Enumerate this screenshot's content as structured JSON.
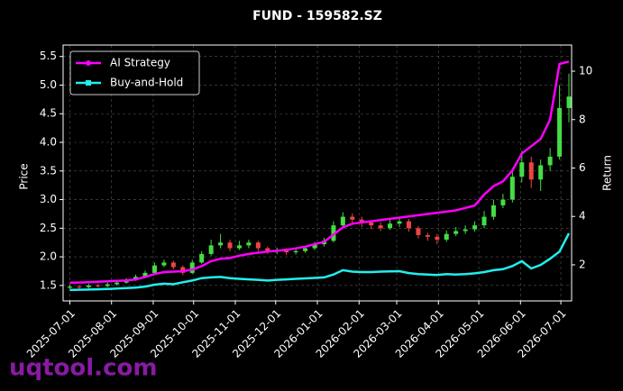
{
  "chart_data": {
    "type": "candlestick",
    "title": "FUND - 159582.SZ",
    "ylabel": "Price",
    "y2label": "Return",
    "watermark": "uqtool.com",
    "x": [
      "2025-07-01",
      "2025-07-08",
      "2025-07-15",
      "2025-07-22",
      "2025-07-29",
      "2025-08-05",
      "2025-08-12",
      "2025-08-19",
      "2025-08-26",
      "2025-09-02",
      "2025-09-09",
      "2025-09-16",
      "2025-09-23",
      "2025-09-30",
      "2025-10-07",
      "2025-10-14",
      "2025-10-21",
      "2025-10-28",
      "2025-11-04",
      "2025-11-11",
      "2025-11-18",
      "2025-11-25",
      "2025-12-02",
      "2025-12-09",
      "2025-12-16",
      "2025-12-23",
      "2025-12-30",
      "2026-01-06",
      "2026-01-13",
      "2026-01-20",
      "2026-01-27",
      "2026-02-03",
      "2026-02-10",
      "2026-02-17",
      "2026-02-24",
      "2026-03-03",
      "2026-03-10",
      "2026-03-17",
      "2026-03-24",
      "2026-03-31",
      "2026-04-07",
      "2026-04-14",
      "2026-04-21",
      "2026-04-28",
      "2026-05-05",
      "2026-05-12",
      "2026-05-19",
      "2026-05-26",
      "2026-06-02",
      "2026-06-09",
      "2026-06-16",
      "2026-06-23",
      "2026-06-30",
      "2026-07-07"
    ],
    "open": [
      1.46,
      1.48,
      1.47,
      1.5,
      1.49,
      1.52,
      1.55,
      1.6,
      1.65,
      1.72,
      1.85,
      1.9,
      1.82,
      1.72,
      1.9,
      2.05,
      2.2,
      2.25,
      2.15,
      2.2,
      2.25,
      2.15,
      2.1,
      2.12,
      2.08,
      2.1,
      2.15,
      2.22,
      2.28,
      2.55,
      2.7,
      2.65,
      2.6,
      2.55,
      2.5,
      2.58,
      2.62,
      2.5,
      2.38,
      2.35,
      2.3,
      2.4,
      2.45,
      2.48,
      2.55,
      2.7,
      2.9,
      3.0,
      3.4,
      3.65,
      3.35,
      3.6,
      3.75,
      4.6
    ],
    "high": [
      1.51,
      1.51,
      1.53,
      1.53,
      1.55,
      1.58,
      1.63,
      1.69,
      1.76,
      1.9,
      1.95,
      1.93,
      1.85,
      1.95,
      2.1,
      2.3,
      2.4,
      2.3,
      2.28,
      2.3,
      2.28,
      2.18,
      2.16,
      2.15,
      2.14,
      2.19,
      2.26,
      2.33,
      2.62,
      2.78,
      2.76,
      2.7,
      2.64,
      2.6,
      2.65,
      2.7,
      2.66,
      2.54,
      2.42,
      2.4,
      2.46,
      2.52,
      2.55,
      2.62,
      2.8,
      3.0,
      3.1,
      3.55,
      3.85,
      3.75,
      3.7,
      3.9,
      5.0,
      5.2
    ],
    "low": [
      1.44,
      1.44,
      1.45,
      1.46,
      1.47,
      1.5,
      1.53,
      1.58,
      1.63,
      1.7,
      1.82,
      1.78,
      1.68,
      1.7,
      1.88,
      2.02,
      2.15,
      2.1,
      2.12,
      2.15,
      2.1,
      2.05,
      2.05,
      2.03,
      2.04,
      2.07,
      2.12,
      2.18,
      2.25,
      2.5,
      2.58,
      2.52,
      2.48,
      2.45,
      2.47,
      2.52,
      2.44,
      2.32,
      2.28,
      2.22,
      2.26,
      2.36,
      2.4,
      2.44,
      2.5,
      2.65,
      2.85,
      2.95,
      3.3,
      3.2,
      3.15,
      3.5,
      3.7,
      4.35
    ],
    "close": [
      1.48,
      1.47,
      1.5,
      1.49,
      1.52,
      1.55,
      1.6,
      1.65,
      1.72,
      1.85,
      1.9,
      1.82,
      1.72,
      1.9,
      2.05,
      2.2,
      2.25,
      2.15,
      2.2,
      2.25,
      2.15,
      2.1,
      2.12,
      2.08,
      2.1,
      2.15,
      2.22,
      2.28,
      2.55,
      2.7,
      2.65,
      2.6,
      2.55,
      2.5,
      2.58,
      2.62,
      2.5,
      2.38,
      2.35,
      2.3,
      2.4,
      2.45,
      2.48,
      2.55,
      2.7,
      2.9,
      3.0,
      3.4,
      3.65,
      3.35,
      3.6,
      3.75,
      4.6,
      4.8
    ],
    "up_color": "#44dd44",
    "down_color": "#ee4444",
    "series": [
      {
        "name": "AI Strategy",
        "color": "#ff00ff",
        "axis": "y2",
        "marker": "circle",
        "values": [
          1.26,
          1.27,
          1.28,
          1.3,
          1.32,
          1.34,
          1.36,
          1.4,
          1.5,
          1.62,
          1.7,
          1.72,
          1.74,
          1.8,
          1.95,
          2.15,
          2.25,
          2.28,
          2.38,
          2.45,
          2.5,
          2.55,
          2.58,
          2.62,
          2.68,
          2.75,
          2.85,
          2.95,
          3.25,
          3.55,
          3.7,
          3.75,
          3.8,
          3.85,
          3.9,
          3.95,
          4.0,
          4.05,
          4.1,
          4.15,
          4.2,
          4.25,
          4.35,
          4.45,
          4.9,
          5.25,
          5.45,
          5.9,
          6.6,
          6.9,
          7.2,
          8.0,
          10.3,
          10.4
        ]
      },
      {
        "name": "Buy-and-Hold",
        "color": "#22eeee",
        "axis": "y2",
        "marker": "square",
        "values": [
          0.96,
          0.97,
          0.98,
          0.99,
          1.0,
          1.02,
          1.04,
          1.06,
          1.1,
          1.18,
          1.22,
          1.2,
          1.28,
          1.35,
          1.45,
          1.48,
          1.5,
          1.45,
          1.42,
          1.4,
          1.38,
          1.35,
          1.38,
          1.4,
          1.42,
          1.44,
          1.46,
          1.48,
          1.6,
          1.78,
          1.72,
          1.7,
          1.7,
          1.72,
          1.73,
          1.74,
          1.66,
          1.62,
          1.6,
          1.58,
          1.62,
          1.6,
          1.62,
          1.65,
          1.7,
          1.78,
          1.82,
          1.95,
          2.15,
          1.85,
          2.0,
          2.25,
          2.55,
          3.3
        ]
      }
    ],
    "xlim": [
      "2025-06-26",
      "2026-07-09"
    ],
    "xticks": [
      "2025-07-01",
      "2025-08-01",
      "2025-09-01",
      "2025-10-01",
      "2025-11-01",
      "2025-12-01",
      "2026-01-01",
      "2026-02-01",
      "2026-03-01",
      "2026-04-01",
      "2026-05-01",
      "2026-06-01",
      "2026-07-01"
    ],
    "ylim": [
      1.23,
      5.7
    ],
    "yticks": [
      1.5,
      {
        "value": 2,
        "label": "2.0"
      },
      2.5,
      {
        "value": 3,
        "label": "3.0"
      },
      3.5,
      {
        "value": 4,
        "label": "4.0"
      },
      4.5,
      {
        "value": 5,
        "label": "5.0"
      },
      5.5
    ],
    "y2lim": [
      0.51,
      11.08
    ],
    "y2ticks": [
      2,
      4,
      6,
      8,
      10
    ],
    "grid": true,
    "legend": "upper left"
  }
}
